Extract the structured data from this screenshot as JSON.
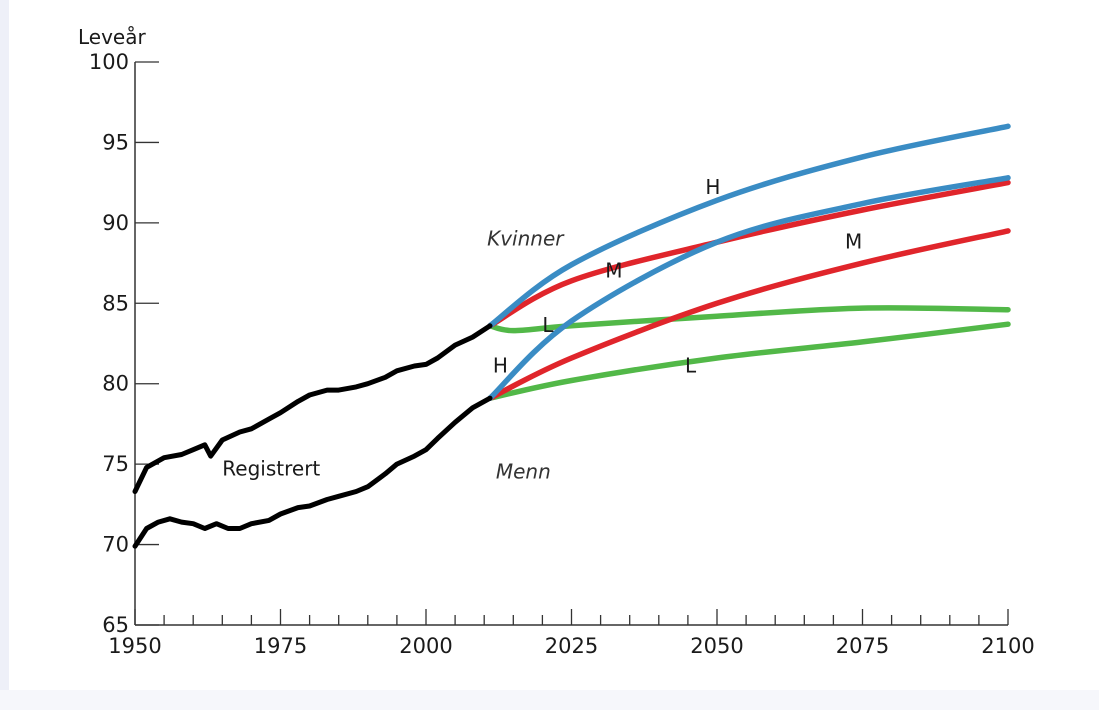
{
  "chart_data": {
    "type": "line",
    "ylabel": "Leveår",
    "xlabel": "",
    "xlim": [
      1950,
      2100
    ],
    "ylim": [
      65,
      100
    ],
    "x_ticks": [
      1950,
      1975,
      2000,
      2025,
      2050,
      2075,
      2100
    ],
    "y_ticks": [
      65,
      70,
      75,
      80,
      85,
      90,
      95,
      100
    ],
    "minor_x_step": 5,
    "grid": false,
    "colors": {
      "registered": "#000000",
      "H": "#3a8cc4",
      "M": "#e0252b",
      "L": "#52b848"
    },
    "series": [
      {
        "key": "registered_women",
        "group": "registered",
        "x": [
          1950,
          1952,
          1955,
          1958,
          1960,
          1962,
          1963,
          1965,
          1968,
          1970,
          1973,
          1975,
          1978,
          1980,
          1983,
          1985,
          1988,
          1990,
          1993,
          1995,
          1998,
          2000,
          2002,
          2005,
          2008,
          2011
        ],
        "y": [
          73.3,
          74.8,
          75.4,
          75.6,
          75.9,
          76.2,
          75.5,
          76.5,
          77.0,
          77.2,
          77.8,
          78.2,
          78.9,
          79.3,
          79.6,
          79.6,
          79.8,
          80.0,
          80.4,
          80.8,
          81.1,
          81.2,
          81.6,
          82.4,
          82.9,
          83.6
        ]
      },
      {
        "key": "registered_men",
        "group": "registered",
        "x": [
          1950,
          1952,
          1954,
          1956,
          1958,
          1960,
          1962,
          1964,
          1966,
          1968,
          1970,
          1973,
          1975,
          1978,
          1980,
          1983,
          1985,
          1988,
          1990,
          1993,
          1995,
          1998,
          2000,
          2002,
          2005,
          2008,
          2011
        ],
        "y": [
          69.9,
          71.0,
          71.4,
          71.6,
          71.4,
          71.3,
          71.0,
          71.3,
          71.0,
          71.0,
          71.3,
          71.5,
          71.9,
          72.3,
          72.4,
          72.8,
          73.0,
          73.3,
          73.6,
          74.4,
          75.0,
          75.5,
          75.9,
          76.6,
          77.6,
          78.5,
          79.1
        ]
      },
      {
        "key": "women_H",
        "name": "H",
        "group": "H",
        "x": [
          2011,
          2025,
          2050,
          2075,
          2100
        ],
        "y": [
          83.6,
          87.4,
          91.4,
          94.1,
          96.0
        ]
      },
      {
        "key": "women_M",
        "name": "M",
        "group": "M",
        "x": [
          2011,
          2025,
          2050,
          2075,
          2100
        ],
        "y": [
          83.6,
          86.4,
          88.8,
          90.8,
          92.5
        ]
      },
      {
        "key": "women_L",
        "name": "L",
        "group": "L",
        "x": [
          2011,
          2015,
          2025,
          2050,
          2075,
          2100
        ],
        "y": [
          83.6,
          83.3,
          83.6,
          84.2,
          84.7,
          84.6
        ]
      },
      {
        "key": "men_H",
        "name": "H",
        "group": "H",
        "x": [
          2011,
          2025,
          2050,
          2075,
          2100
        ],
        "y": [
          79.1,
          83.9,
          88.8,
          91.2,
          92.8
        ]
      },
      {
        "key": "men_M",
        "name": "M",
        "group": "M",
        "x": [
          2011,
          2025,
          2050,
          2075,
          2100
        ],
        "y": [
          79.1,
          81.6,
          85.0,
          87.5,
          89.5
        ]
      },
      {
        "key": "men_L",
        "name": "L",
        "group": "L",
        "x": [
          2011,
          2025,
          2050,
          2075,
          2100
        ],
        "y": [
          79.1,
          80.2,
          81.6,
          82.6,
          83.7
        ]
      }
    ],
    "annotations": [
      {
        "text": "Kvinner",
        "x": 2010.5,
        "y": 88.6,
        "italic": true
      },
      {
        "text": "Menn",
        "x": 2012,
        "y": 74.1,
        "italic": true
      },
      {
        "text": "Registrert",
        "x": 1965,
        "y": 74.3,
        "italic": false
      },
      {
        "text": "H",
        "x": 2048,
        "y": 91.8,
        "italic": false
      },
      {
        "text": "M",
        "x": 2030.8,
        "y": 86.6,
        "italic": false
      },
      {
        "text": "L",
        "x": 2020,
        "y": 83.2,
        "italic": false
      },
      {
        "text": "H",
        "x": 2011.5,
        "y": 80.7,
        "italic": false
      },
      {
        "text": "M",
        "x": 2072,
        "y": 88.4,
        "italic": false
      },
      {
        "text": "L",
        "x": 2044.5,
        "y": 80.7,
        "italic": false
      }
    ]
  }
}
